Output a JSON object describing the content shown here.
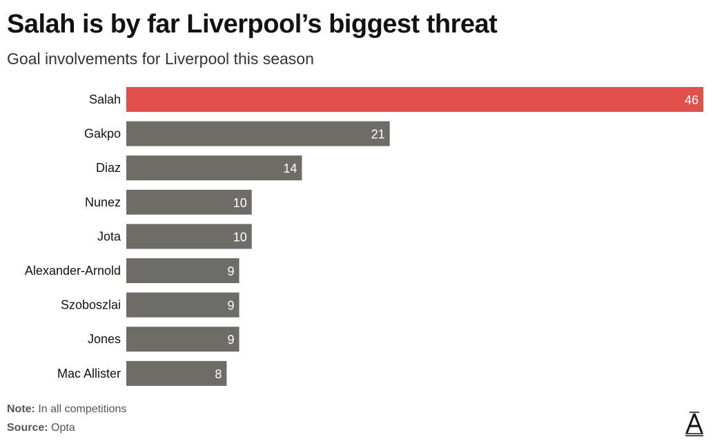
{
  "title": "Salah is by far Liverpool’s biggest threat",
  "subtitle": "Goal involvements for Liverpool this season",
  "note_label": "Note:",
  "note": "In all competitions",
  "source_label": "Source:",
  "source": "Opta",
  "logo_text": "A",
  "colors": {
    "highlight": "#e2504c",
    "default": "#6e6c66"
  },
  "chart_data": {
    "type": "bar",
    "orientation": "horizontal",
    "categories": [
      "Salah",
      "Gakpo",
      "Diaz",
      "Nunez",
      "Jota",
      "Alexander-Arnold",
      "Szoboszlai",
      "Jones",
      "Mac Allister"
    ],
    "values": [
      46,
      21,
      14,
      10,
      10,
      9,
      9,
      9,
      8
    ],
    "highlight": "Salah",
    "xlim": [
      0,
      46
    ],
    "grid": false,
    "data_labels": true
  }
}
